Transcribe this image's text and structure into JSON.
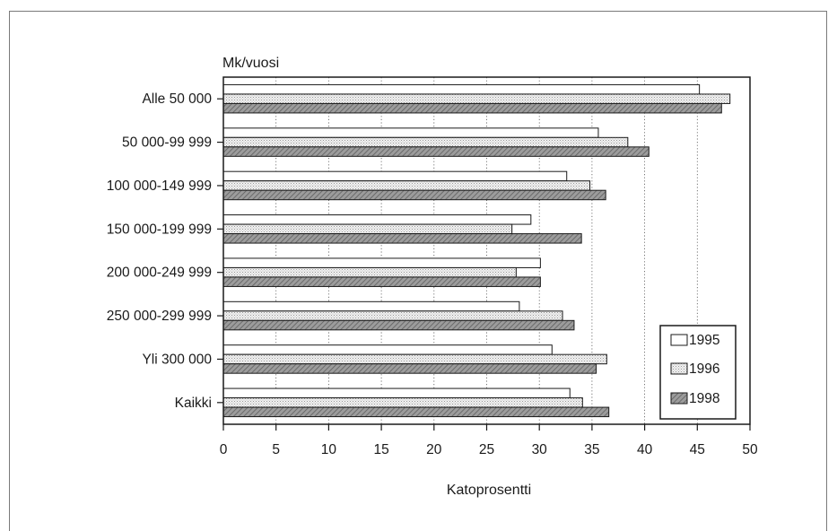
{
  "chart_data": {
    "type": "bar",
    "orientation": "horizontal",
    "title": "",
    "ylabel": "Mk/vuosi",
    "xlabel": "Katoprosentti",
    "categories": [
      "Alle 50 000",
      "50 000-99 999",
      "100 000-149 999",
      "150 000-199 999",
      "200 000-249 999",
      "250 000-299 999",
      "Yli 300 000",
      "Kaikki"
    ],
    "series": [
      {
        "name": "1995",
        "values": [
          45.2,
          35.6,
          32.6,
          29.2,
          30.1,
          28.1,
          31.2,
          32.9
        ],
        "pattern": "white"
      },
      {
        "name": "1996",
        "values": [
          48.1,
          38.4,
          34.8,
          27.4,
          27.8,
          32.2,
          36.4,
          34.1
        ],
        "pattern": "dotted-light"
      },
      {
        "name": "1998",
        "values": [
          47.3,
          40.4,
          36.3,
          34.0,
          30.1,
          33.3,
          35.4,
          36.6
        ],
        "pattern": "hatched-dark"
      }
    ],
    "xlim": [
      0,
      50
    ],
    "xticks": [
      "0",
      "5",
      "10",
      "15",
      "20",
      "25",
      "30",
      "35",
      "40",
      "45",
      "50"
    ],
    "grid": "vertical-dotted",
    "legend": "bottom-right"
  }
}
